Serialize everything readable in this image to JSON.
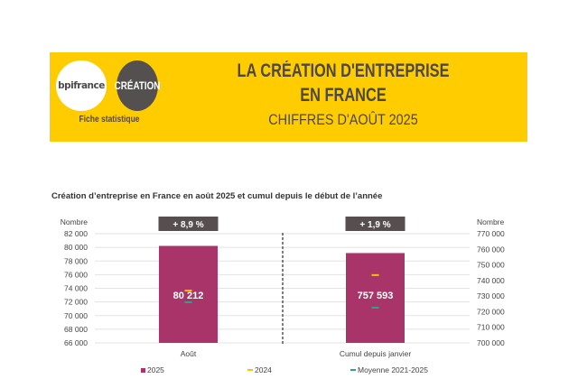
{
  "header": {
    "logo_left": "bpifrance",
    "logo_right": "CRÉATION",
    "tagline": "Fiche statistique",
    "title_line1": "LA CRÉATION D'ENTREPRISE",
    "title_line2": "EN FRANCE",
    "subtitle": "CHIFFRES D'AOÛT 2025"
  },
  "colors": {
    "banner": "#ffcc00",
    "bar_2025": "#a8346a",
    "marker_2024": "#ffc000",
    "marker_avg": "#2aa58a",
    "badge": "#574f4f"
  },
  "chart_data": {
    "type": "bar",
    "title": "Création d’entreprise en France en août 2025 et cumul depuis le début de l’année",
    "categories": [
      "Août",
      "Cumul depuis janvier"
    ],
    "left_axis": {
      "label": "Nombre",
      "ylim": [
        66000,
        82000
      ],
      "ticks": [
        "66 000",
        "68 000",
        "70 000",
        "72 000",
        "74 000",
        "76 000",
        "78 000",
        "80 000",
        "82 000"
      ],
      "tick_values": [
        66000,
        68000,
        70000,
        72000,
        74000,
        76000,
        78000,
        80000,
        82000
      ]
    },
    "right_axis": {
      "label": "Nombre",
      "ylim": [
        700000,
        770000
      ],
      "ticks": [
        "700 000",
        "710 000",
        "720 000",
        "730 000",
        "740 000",
        "750 000",
        "760 000",
        "770 000"
      ],
      "tick_values": [
        700000,
        710000,
        720000,
        730000,
        740000,
        750000,
        760000,
        770000
      ]
    },
    "series": [
      {
        "name": "2025",
        "type": "bar",
        "values": [
          80212,
          757593
        ],
        "labels": [
          "80 212",
          "757 593"
        ]
      },
      {
        "name": "2024",
        "type": "marker",
        "values": [
          73660,
          743470
        ]
      },
      {
        "name": "Moyenne 2021-2025",
        "type": "marker",
        "values": [
          71950,
          722600
        ]
      }
    ],
    "badges": [
      "+ 8,9 %",
      "+ 1,9 %"
    ],
    "legend": [
      "2025",
      "2024",
      "Moyenne 2021-2025"
    ],
    "legend_position": "bottom",
    "grid": true
  }
}
